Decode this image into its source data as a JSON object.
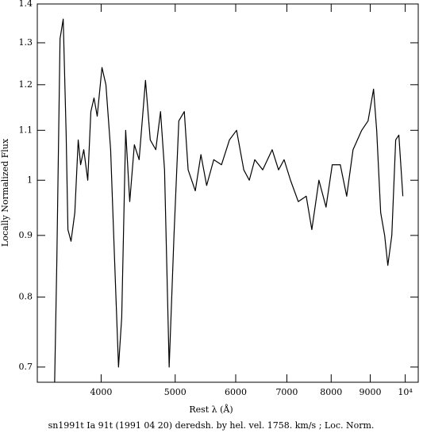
{
  "chart_data": {
    "type": "line",
    "title": "sn1991t Ia 91t (1991 04 20) deredsh. by hel. vel.  1758. km/s ;  Loc. Norm.",
    "x_label": "Rest λ (Å)",
    "y_label": "Locally Normalized Flux",
    "x_log": true,
    "y_log": true,
    "grid": false,
    "xlim": [
      3300,
      10400
    ],
    "ylim": [
      0.68,
      1.4
    ],
    "xticks": [
      4000,
      5000,
      6000,
      7000,
      8000,
      9000,
      {
        "value": 10000,
        "label": "10⁴"
      }
    ],
    "yticks": [
      0.7,
      0.8,
      0.9,
      1,
      1.1,
      1.2,
      1.3,
      1.4
    ],
    "series": [
      {
        "color": "#000000",
        "x": [
          3477,
          3500,
          3534,
          3568,
          3600,
          3619,
          3653,
          3695,
          3733,
          3760,
          3796,
          3842,
          3878,
          3915,
          3953,
          4010,
          4058,
          4116,
          4165,
          4215,
          4256,
          4307,
          4360,
          4421,
          4485,
          4572,
          4638,
          4716,
          4784,
          4842,
          4910,
          4982,
          5055,
          5139,
          5199,
          5312,
          5403,
          5497,
          5616,
          5749,
          5888,
          6016,
          6148,
          6251,
          6355,
          6509,
          6697,
          6827,
          6942,
          7077,
          7245,
          7421,
          7547,
          7710,
          7877,
          8026,
          8223,
          8383,
          8545,
          8771,
          8941,
          9090,
          9176,
          9287,
          9399,
          9489,
          9604,
          9717,
          9810,
          9929
        ],
        "values": [
          0.68,
          0.857,
          1.31,
          1.36,
          1.09,
          0.91,
          0.89,
          0.94,
          1.08,
          1.03,
          1.06,
          1.0,
          1.14,
          1.17,
          1.13,
          1.24,
          1.2,
          1.06,
          0.86,
          0.7,
          0.77,
          1.1,
          0.96,
          1.07,
          1.04,
          1.21,
          1.08,
          1.06,
          1.14,
          1.02,
          0.7,
          0.9,
          1.12,
          1.14,
          1.02,
          0.98,
          1.05,
          0.99,
          1.04,
          1.03,
          1.08,
          1.1,
          1.02,
          1.0,
          1.04,
          1.02,
          1.06,
          1.02,
          1.04,
          1.0,
          0.96,
          0.97,
          0.91,
          1.0,
          0.95,
          1.03,
          1.03,
          0.97,
          1.06,
          1.1,
          1.12,
          1.19,
          1.1,
          0.94,
          0.9,
          0.85,
          0.9,
          1.08,
          1.09,
          0.97
        ]
      }
    ]
  }
}
